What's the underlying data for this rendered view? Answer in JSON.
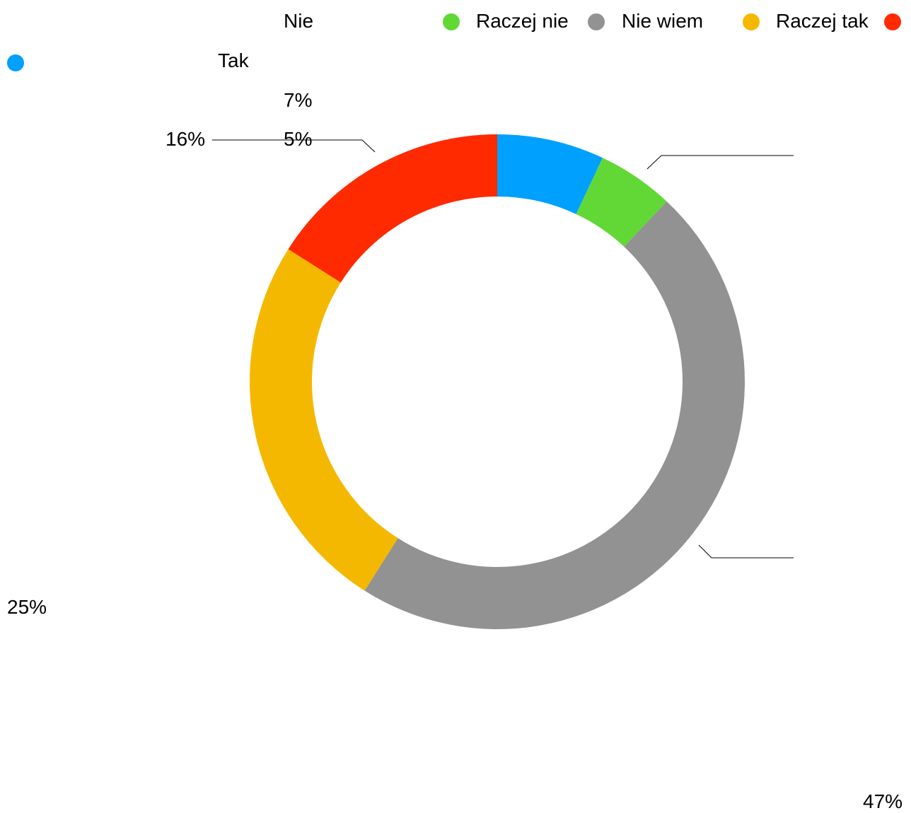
{
  "chart_data": {
    "type": "pie",
    "categories": [
      "Tak",
      "Nie",
      "Nie wiem",
      "Raczej tak",
      "Raczej nie"
    ],
    "values": [
      7,
      5,
      47,
      25,
      16
    ],
    "value_labels": [
      "7%",
      "5%",
      "47%",
      "25%",
      "16%"
    ],
    "colors": [
      "#00a0ff",
      "#61d836",
      "#929292",
      "#f5b800",
      "#ff2a00"
    ],
    "legend_placement": "top"
  }
}
